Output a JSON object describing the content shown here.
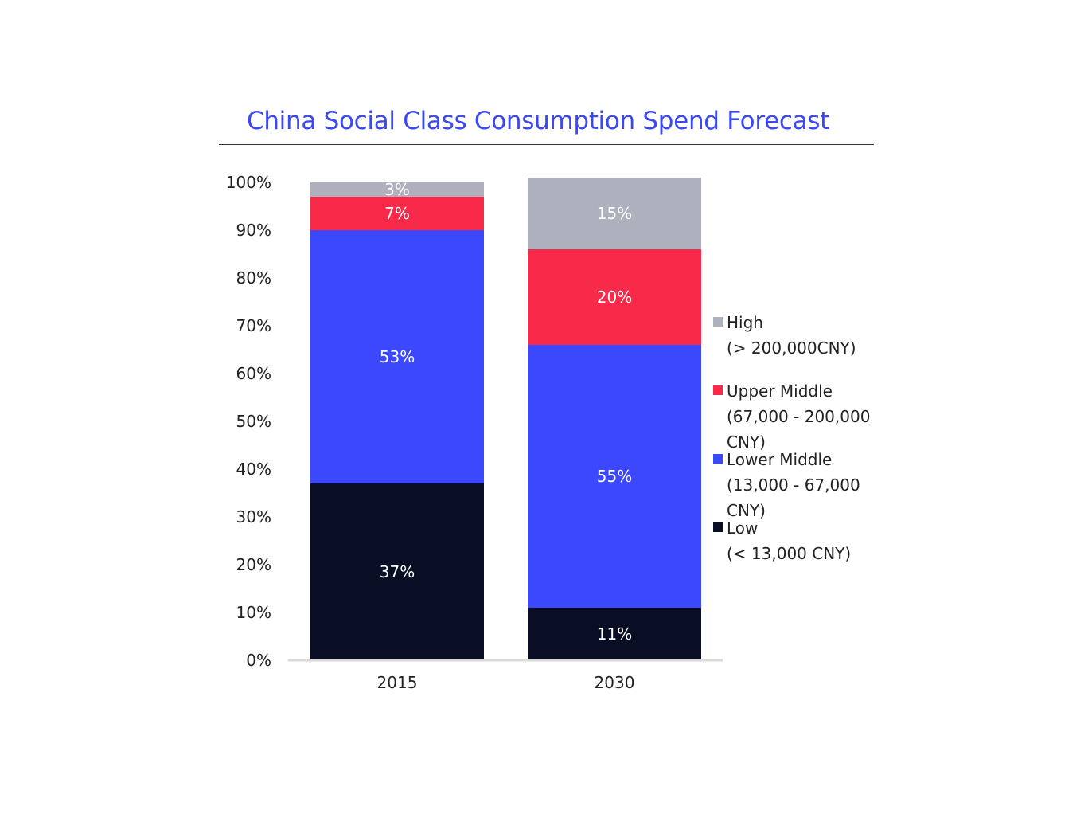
{
  "chart_data": {
    "type": "bar",
    "stacked": true,
    "percent": true,
    "title": "China Social Class Consumption Spend Forecast",
    "categories": [
      "2015",
      "2030"
    ],
    "ylim": [
      0,
      100
    ],
    "yticks": [
      "0%",
      "10%",
      "20%",
      "30%",
      "40%",
      "50%",
      "60%",
      "70%",
      "80%",
      "90%",
      "100%"
    ],
    "series": [
      {
        "name": "Low",
        "note": "(< 13,000 CNY)",
        "color": "#0a0e24",
        "values": [
          37,
          11
        ],
        "labels": [
          "37%",
          "11%"
        ]
      },
      {
        "name": "Lower Middle",
        "note": "(13,000 - 67,000 CNY)",
        "color": "#3b48fe",
        "values": [
          53,
          55
        ],
        "labels": [
          "53%",
          "55%"
        ]
      },
      {
        "name": "Upper Middle",
        "note": "(67,000 - 200,000 CNY)",
        "color": "#f9294a",
        "values": [
          7,
          20
        ],
        "labels": [
          "7%",
          "20%"
        ]
      },
      {
        "name": "High",
        "note": "(> 200,000CNY)",
        "color": "#aeb0bd",
        "values": [
          3,
          15
        ],
        "labels": [
          "3%",
          "15%"
        ]
      }
    ],
    "legend_position": "right",
    "grid": false
  }
}
